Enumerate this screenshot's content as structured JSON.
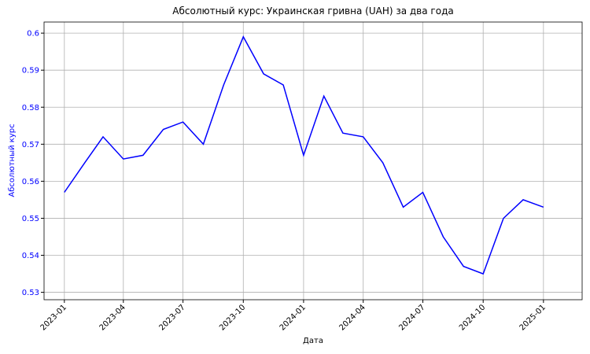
{
  "chart_data": {
    "type": "line",
    "title": "Абсолютный курс: Украинская гривна (UAH) за два года",
    "x_label": "Дата",
    "y_label": "Абсолютный курс",
    "x": [
      "2023-01",
      "2023-02",
      "2023-03",
      "2023-04",
      "2023-05",
      "2023-06",
      "2023-07",
      "2023-08",
      "2023-09",
      "2023-10",
      "2023-11",
      "2023-12",
      "2024-01",
      "2024-02",
      "2024-03",
      "2024-04",
      "2024-05",
      "2024-06",
      "2024-07",
      "2024-08",
      "2024-09",
      "2024-10",
      "2024-11",
      "2024-12",
      "2025-01"
    ],
    "series": [
      {
        "name": "UAH",
        "color": "#0000ff",
        "values": [
          0.557,
          0.565,
          0.572,
          0.566,
          0.567,
          0.574,
          0.576,
          0.57,
          0.586,
          0.599,
          0.589,
          0.586,
          0.567,
          0.583,
          0.573,
          0.572,
          0.565,
          0.553,
          0.557,
          0.545,
          0.537,
          0.535,
          0.55,
          0.555,
          0.553
        ]
      }
    ],
    "xlim": [
      "2022-12",
      "2025-03"
    ],
    "xticks": [
      "2023-01",
      "2023-04",
      "2023-07",
      "2023-10",
      "2024-01",
      "2024-04",
      "2024-07",
      "2024-10",
      "2025-01"
    ],
    "ylim": [
      0.528,
      0.603
    ],
    "yticks": [
      0.53,
      0.54,
      0.55,
      0.56,
      0.57,
      0.58,
      0.59,
      0.6
    ],
    "grid": true,
    "y_label_color": "#0000ff"
  }
}
